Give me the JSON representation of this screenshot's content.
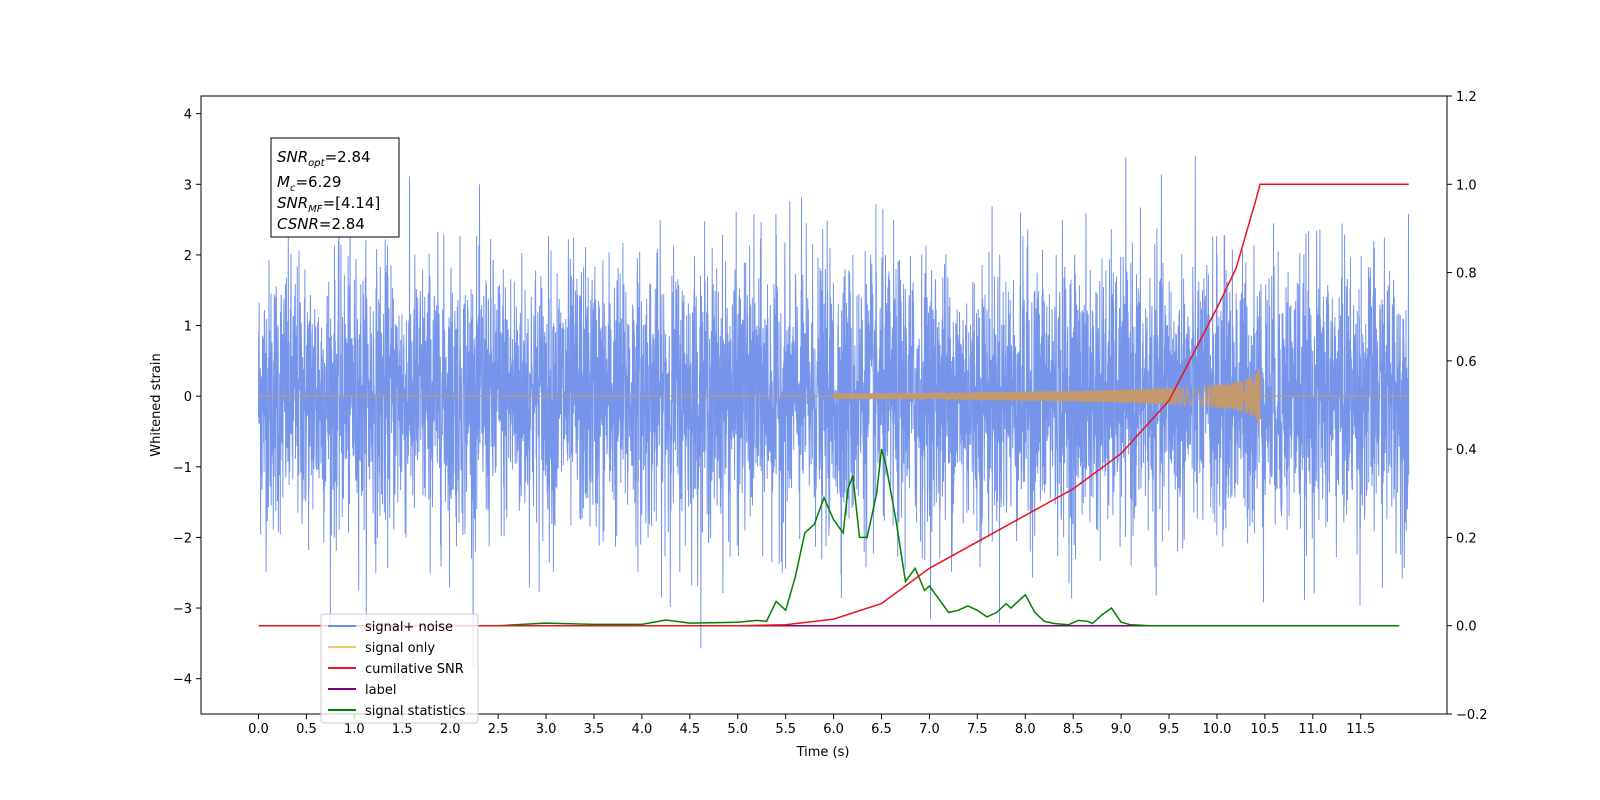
{
  "chart_data": {
    "type": "line",
    "xlabel": "Time (s)",
    "ylabel": "Whitened strain",
    "xlim": [
      -0.6,
      12.4
    ],
    "ylim": [
      -4.5,
      4.25
    ],
    "y2lim": [
      -0.2,
      1.2
    ],
    "x_ticks": [
      "0.0",
      "0.5",
      "1.0",
      "1.5",
      "2.0",
      "2.5",
      "3.0",
      "3.5",
      "4.0",
      "4.5",
      "5.0",
      "5.5",
      "6.0",
      "6.5",
      "7.0",
      "7.5",
      "8.0",
      "8.5",
      "9.0",
      "9.5",
      "10.0",
      "10.5",
      "11.0",
      "11.5"
    ],
    "y_ticks": [
      4,
      3,
      2,
      1,
      0,
      -1,
      -2,
      -3,
      -4
    ],
    "y2_ticks": [
      "1.2",
      "1.0",
      "0.8",
      "0.6",
      "0.4",
      "0.2",
      "0.0",
      "−0.2"
    ],
    "grid": false,
    "legend_position": "lower-left",
    "annotation": {
      "snr_opt_base": "SNR",
      "snr_opt_sub": "opt",
      "snr_opt_value": "=2.84",
      "mc_base": "M",
      "mc_sub": "c",
      "mc_value": "=6.29",
      "snr_mf_base": "SNR",
      "snr_mf_sub": "MF",
      "snr_mf_value": "=[4.14]",
      "csnr_base": "CSNR",
      "csnr_value": "=2.84"
    },
    "series": [
      {
        "name": "signal+ noise",
        "color": "#6f8ee8",
        "axis": "left",
        "description": "whitened noisy strain, approx. gaussian, std ~0.95, spans 0 to 12 s"
      },
      {
        "name": "signal only",
        "color": "#f5c26b",
        "axis": "left",
        "peak_time": 10.45,
        "peak_amplitude": 0.35,
        "start_time": 6.0
      },
      {
        "name": "cumilative SNR",
        "color": "#e8141c",
        "axis": "right",
        "x": [
          0,
          5.0,
          5.5,
          6.0,
          6.5,
          7.0,
          7.5,
          8.0,
          8.5,
          9.0,
          9.5,
          10.0,
          10.2,
          10.4,
          10.45,
          11.0,
          12.0
        ],
        "y": [
          0,
          0,
          0.002,
          0.015,
          0.05,
          0.13,
          0.19,
          0.25,
          0.31,
          0.39,
          0.51,
          0.72,
          0.81,
          0.96,
          1.0,
          1.0,
          1.0
        ]
      },
      {
        "name": "label",
        "color": "#800080",
        "axis": "right",
        "x": [
          0,
          11.9
        ],
        "y": [
          0,
          0
        ]
      },
      {
        "name": "signal statistics",
        "color": "#008000",
        "axis": "right",
        "x": [
          0,
          2.5,
          3.0,
          3.5,
          4.0,
          4.25,
          4.5,
          5.0,
          5.2,
          5.3,
          5.4,
          5.5,
          5.6,
          5.7,
          5.75,
          5.8,
          5.9,
          6.0,
          6.1,
          6.15,
          6.2,
          6.27,
          6.35,
          6.45,
          6.5,
          6.55,
          6.65,
          6.75,
          6.85,
          6.95,
          7.0,
          7.1,
          7.2,
          7.3,
          7.4,
          7.5,
          7.6,
          7.7,
          7.8,
          7.85,
          7.9,
          8.0,
          8.05,
          8.1,
          8.2,
          8.3,
          8.45,
          8.55,
          8.65,
          8.7,
          8.8,
          8.9,
          9.0,
          9.1,
          9.3,
          11.9
        ],
        "y": [
          0,
          0,
          0.006,
          0.003,
          0.003,
          0.013,
          0.006,
          0.008,
          0.012,
          0.01,
          0.055,
          0.035,
          0.11,
          0.21,
          0.22,
          0.23,
          0.29,
          0.24,
          0.21,
          0.31,
          0.34,
          0.2,
          0.2,
          0.3,
          0.4,
          0.36,
          0.24,
          0.1,
          0.13,
          0.08,
          0.09,
          0.06,
          0.03,
          0.035,
          0.045,
          0.035,
          0.02,
          0.03,
          0.05,
          0.04,
          0.05,
          0.07,
          0.05,
          0.03,
          0.01,
          0.005,
          0.002,
          0.012,
          0.01,
          0.005,
          0.025,
          0.04,
          0.008,
          0.002,
          0,
          0
        ]
      }
    ]
  }
}
